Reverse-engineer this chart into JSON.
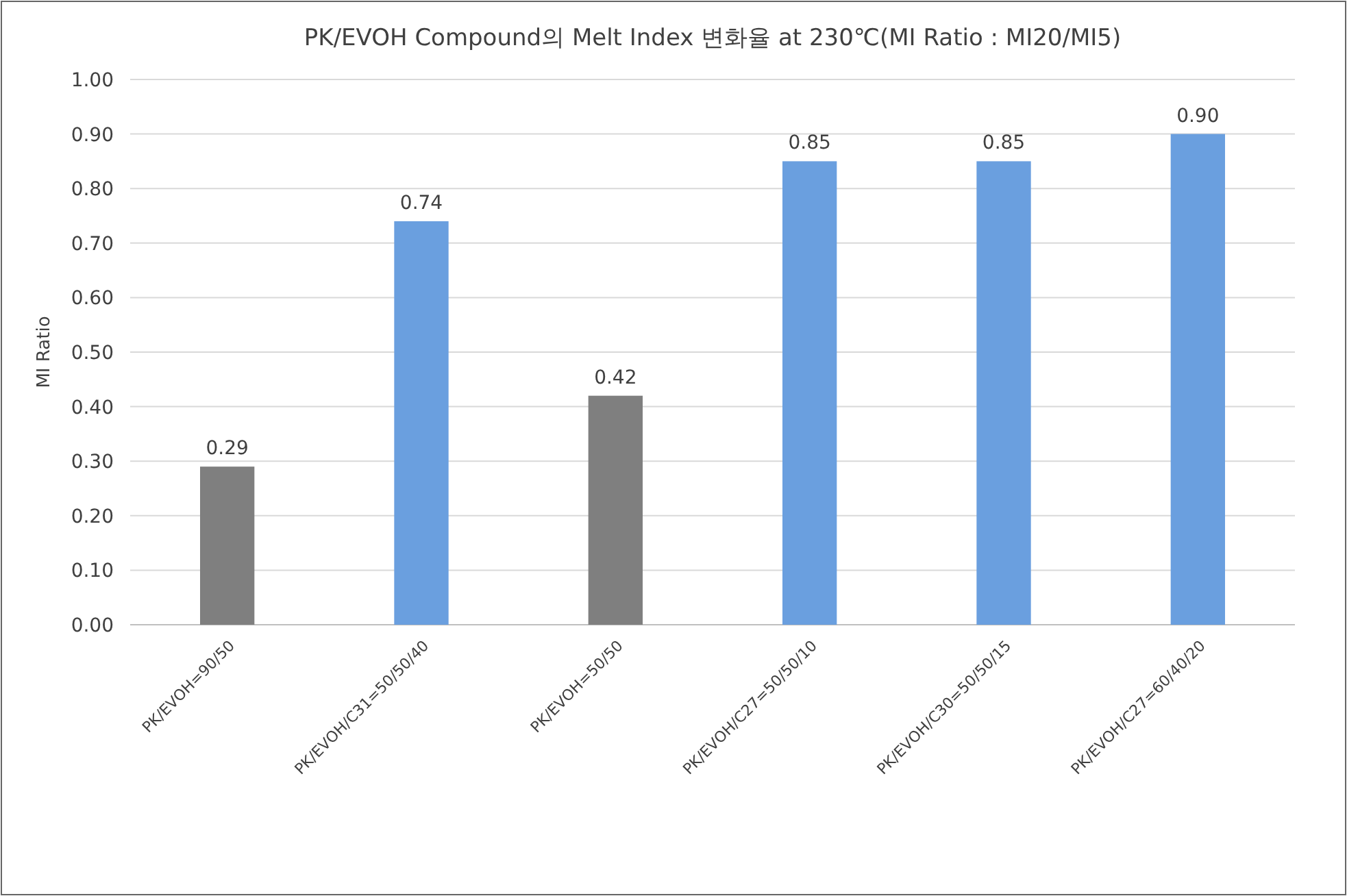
{
  "chart_data": {
    "type": "bar",
    "title": "PK/EVOH Compound의 Melt Index 변화율 at 230℃(MI Ratio : MI20/MI5)",
    "ylabel": "MI Ratio",
    "categories": [
      "PK/EVOH=90/50",
      "PK/EVOH/C31=50/50/40",
      "PK/EVOH=50/50",
      "PK/EVOH/C27=50/50/10",
      "PK/EVOH/C30=50/50/15",
      "PK/EVOH/C27=60/40/20"
    ],
    "values": [
      0.29,
      0.74,
      0.42,
      0.85,
      0.85,
      0.9
    ],
    "colors": [
      "#7f7f7f",
      "#6a9fdf",
      "#7f7f7f",
      "#6a9fdf",
      "#6a9fdf",
      "#6a9fdf"
    ],
    "value_labels": [
      "0.29",
      "0.74",
      "0.42",
      "0.85",
      "0.85",
      "0.90"
    ],
    "ylim": [
      0,
      1
    ],
    "yticks": [
      {
        "value": 0,
        "label": "0.00"
      },
      {
        "value": 0.1,
        "label": "0.10"
      },
      {
        "value": 0.2,
        "label": "0.20"
      },
      {
        "value": 0.3,
        "label": "0.30"
      },
      {
        "value": 0.4,
        "label": "0.40"
      },
      {
        "value": 0.5,
        "label": "0.50"
      },
      {
        "value": 0.6,
        "label": "0.60"
      },
      {
        "value": 0.7,
        "label": "0.70"
      },
      {
        "value": 0.8,
        "label": "0.80"
      },
      {
        "value": 0.9,
        "label": "0.90"
      },
      {
        "value": 1,
        "label": "1.00"
      }
    ],
    "grid": "y"
  }
}
